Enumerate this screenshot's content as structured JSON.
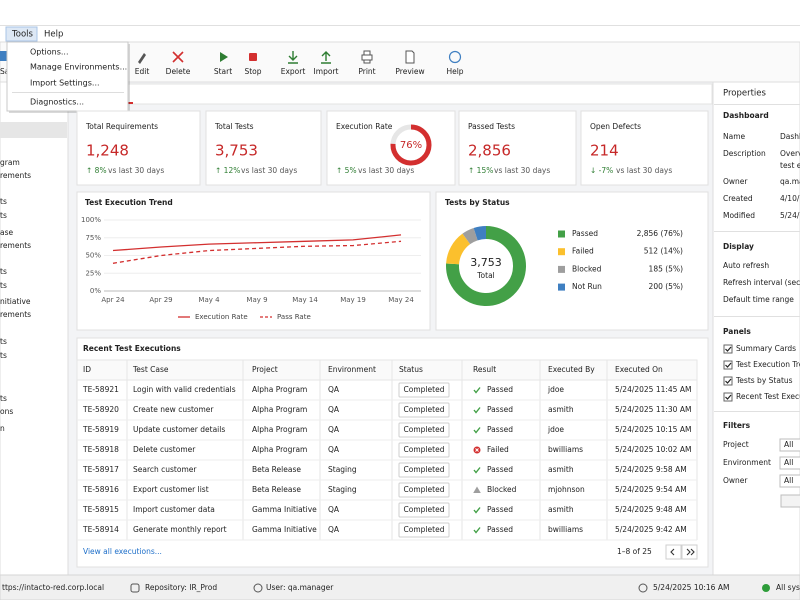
{
  "menu": {
    "items": [
      "Tools",
      "Help"
    ],
    "dropdown": [
      "Options...",
      "Manage Environments...",
      "Import Settings...",
      "Diagnostics..."
    ]
  },
  "toolbar": {
    "partial": "Sa",
    "buttons": [
      "Edit",
      "Delete",
      "Start",
      "Stop",
      "Export",
      "Import",
      "Print",
      "Preview",
      "Help"
    ]
  },
  "sidebar": {
    "items": [
      "gram",
      "rements",
      "ts",
      "ts",
      "ase",
      "rements",
      "ts",
      "ts",
      "nitiative",
      "rements",
      "ts",
      "ts",
      "ts",
      "ons",
      "n"
    ]
  },
  "cards": [
    {
      "title": "Total Requirements",
      "value": "1,248",
      "change": "↑ 8%",
      "note": "vs last 30 days"
    },
    {
      "title": "Total Tests",
      "value": "3,753",
      "change": "↑ 12%",
      "note": "vs last 30 days"
    },
    {
      "title": "Execution Rate",
      "gauge": 76,
      "gauge_label": "76%",
      "change": "↑ 5%",
      "note": "vs last 30 days"
    },
    {
      "title": "Passed Tests",
      "value": "2,856",
      "change": "↑ 15%",
      "note": "vs last 30 days"
    },
    {
      "title": "Open Defects",
      "value": "214",
      "change": "↓ -7%",
      "note": "vs last 30 days"
    }
  ],
  "trend_chart": {
    "type": "line",
    "title": "Test Execution Trend",
    "categories": [
      "Apr 24",
      "Apr 29",
      "May 4",
      "May 9",
      "May 14",
      "May 19",
      "May 24"
    ],
    "series": [
      {
        "name": "Execution Rate",
        "color": "#d32f2f",
        "dash": false,
        "values": [
          57,
          62,
          66,
          68,
          70,
          72,
          79
        ]
      },
      {
        "name": "Pass Rate",
        "color": "#d32f2f",
        "dash": true,
        "values": [
          39,
          50,
          57,
          60,
          63,
          64,
          70
        ]
      }
    ],
    "ylim": [
      0,
      100
    ],
    "yticks": [
      {
        "value": 0,
        "label": "0%"
      },
      {
        "value": 25,
        "label": "25%"
      },
      {
        "value": 50,
        "label": "50%"
      },
      {
        "value": 75,
        "label": "75%"
      },
      {
        "value": 100,
        "label": "100%"
      }
    ],
    "grid": true
  },
  "status_chart": {
    "type": "pie",
    "title": "Tests by Status",
    "center_value": "3,753",
    "center_label": "Total",
    "items": [
      {
        "name": "Passed",
        "color": "#43a047",
        "value": 76,
        "label": "2,856 (76%)"
      },
      {
        "name": "Failed",
        "color": "#fbc02d",
        "value": 14,
        "label": "512 (14%)"
      },
      {
        "name": "Blocked",
        "color": "#9e9e9e",
        "value": 5,
        "label": "185 (5%)"
      },
      {
        "name": "Not Run",
        "color": "#3f7fc1",
        "value": 5,
        "label": "200 (5%)"
      }
    ]
  },
  "table": {
    "title": "Recent Test Executions",
    "columns": [
      "ID",
      "Test Case",
      "Project",
      "Environment",
      "Status",
      "Result",
      "Executed By",
      "Executed On"
    ],
    "rows": [
      [
        "TE-58921",
        "Login with valid credentials",
        "Alpha Program",
        "QA",
        "Completed",
        "Passed",
        "jdoe",
        "5/24/2025 11:45 AM"
      ],
      [
        "TE-58920",
        "Create new customer",
        "Alpha Program",
        "QA",
        "Completed",
        "Passed",
        "asmith",
        "5/24/2025 11:30 AM"
      ],
      [
        "TE-58919",
        "Update customer details",
        "Alpha Program",
        "QA",
        "Completed",
        "Passed",
        "jdoe",
        "5/24/2025 10:15 AM"
      ],
      [
        "TE-58918",
        "Delete customer",
        "Alpha Program",
        "QA",
        "Completed",
        "Failed",
        "bwilliams",
        "5/24/2025 10:02 AM"
      ],
      [
        "TE-58917",
        "Search customer",
        "Beta Release",
        "Staging",
        "Completed",
        "Passed",
        "asmith",
        "5/24/2025 9:58 AM"
      ],
      [
        "TE-58916",
        "Export customer list",
        "Beta Release",
        "Staging",
        "Completed",
        "Blocked",
        "mjohnson",
        "5/24/2025 9:54 AM"
      ],
      [
        "TE-58915",
        "Import customer data",
        "Gamma Initiative",
        "QA",
        "Completed",
        "Passed",
        "asmith",
        "5/24/2025 9:48 AM"
      ],
      [
        "TE-58914",
        "Generate monthly report",
        "Gamma Initiative",
        "QA",
        "Completed",
        "Passed",
        "bwilliams",
        "5/24/2025 9:42 AM"
      ]
    ],
    "footer_link": "View all executions...",
    "pagination": "1–8 of 25"
  },
  "properties": {
    "title": "Properties",
    "dashboard": {
      "title": "Dashboard",
      "rows": [
        {
          "label": "Name",
          "lines": [
            "Dashb"
          ]
        },
        {
          "label": "Description",
          "lines": [
            "Overv",
            "test e"
          ]
        },
        {
          "label": "Owner",
          "lines": [
            "qa.ma"
          ]
        },
        {
          "label": "Created",
          "lines": [
            "4/10/"
          ]
        },
        {
          "label": "Modified",
          "lines": [
            "5/24/"
          ]
        }
      ]
    },
    "display": {
      "title": "Display",
      "rows": [
        "Auto refresh",
        "Refresh interval (sec)",
        "Default time range"
      ]
    },
    "panels": {
      "title": "Panels",
      "items": [
        {
          "label": "Summary Cards",
          "checked": true
        },
        {
          "label": "Test Execution Trend",
          "checked": true
        },
        {
          "label": "Tests by Status",
          "checked": true
        },
        {
          "label": "Recent Test Executions",
          "checked": true
        }
      ]
    },
    "filters": {
      "title": "Filters",
      "rows": [
        {
          "label": "Project",
          "value": "All"
        },
        {
          "label": "Environment",
          "value": "All"
        },
        {
          "label": "Owner",
          "value": "All"
        }
      ]
    }
  },
  "statusbar": {
    "url": "ttps://intacto-red.corp.local",
    "repository": "Repository: IR_Prod",
    "user": "User: qa.manager",
    "time": "5/24/2025 10:16 AM",
    "health": "All syst"
  }
}
